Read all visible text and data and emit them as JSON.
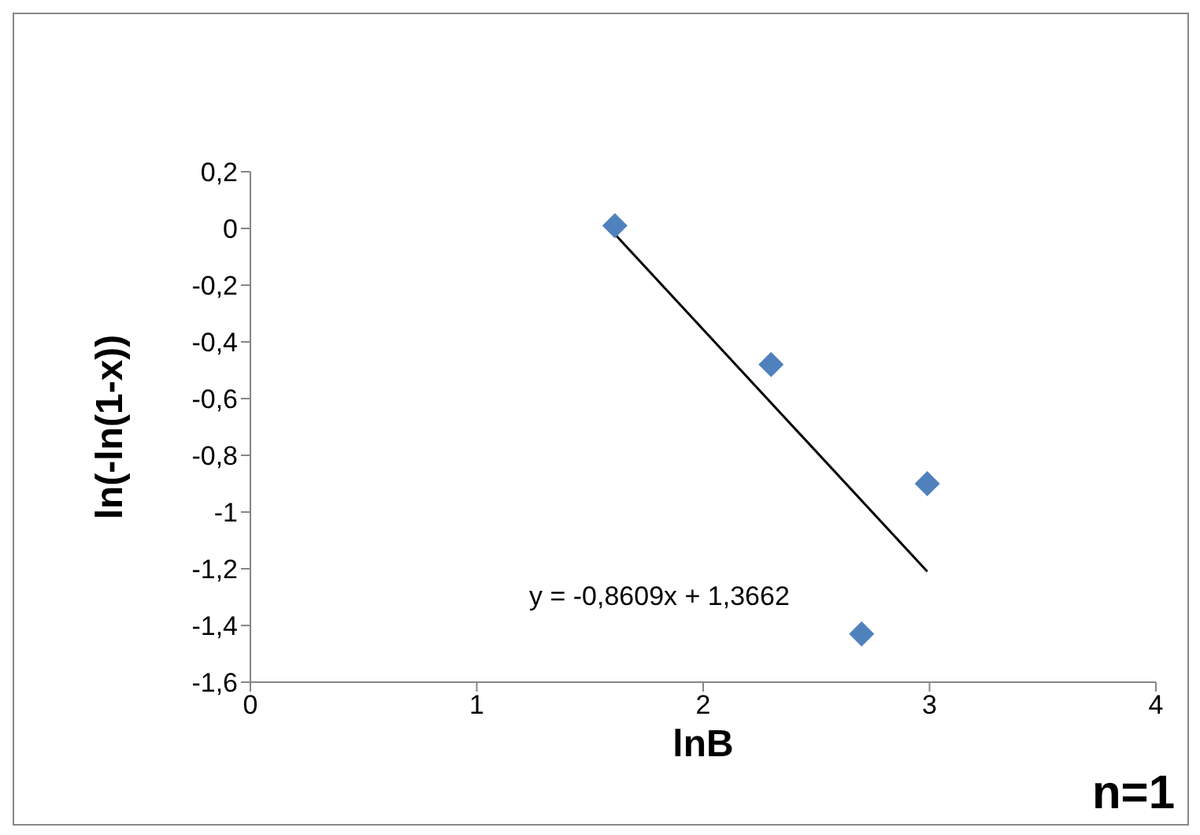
{
  "chart_data": {
    "type": "scatter",
    "xlabel": "lnB",
    "ylabel": "ln(-ln(1-x))",
    "annotations": [
      "y = -0,8609x + 1,3662",
      "n=1"
    ],
    "series": [
      {
        "color": "#4f81bd",
        "x": [
          1.61,
          2.3,
          2.7,
          2.99
        ],
        "values": [
          0.01,
          -0.48,
          -1.43,
          -0.9
        ],
        "marker": "diamond"
      },
      {
        "type": "line",
        "color": "#000000",
        "x": [
          1.61,
          2.99
        ],
        "values": [
          -0.02,
          -1.21
        ],
        "marker": "none",
        "line_style": "solid"
      }
    ],
    "xlim": [
      0,
      4
    ],
    "xticks": [
      0,
      1,
      2,
      3,
      4
    ],
    "ylim": [
      -1.6,
      0.2
    ],
    "yticks": [
      {
        "value": 0.2,
        "label": "0,2"
      },
      0,
      {
        "value": -0.2,
        "label": "-0,2"
      },
      {
        "value": -0.4,
        "label": "-0,4"
      },
      {
        "value": -0.6,
        "label": "-0,6"
      },
      {
        "value": -0.8,
        "label": "-0,8"
      },
      -1,
      {
        "value": -1.2,
        "label": "-1,2"
      },
      {
        "value": -1.4,
        "label": "-1,4"
      },
      {
        "value": -1.6,
        "label": "-1,6"
      }
    ],
    "grid": false,
    "legend": false
  }
}
